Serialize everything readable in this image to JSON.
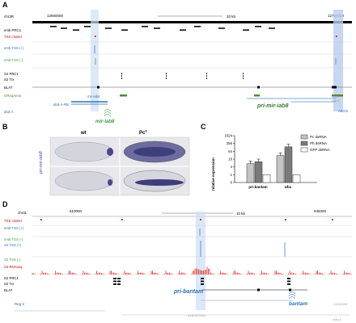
{
  "panels": {
    "a": "A",
    "b": "B",
    "c": "C",
    "d": "D"
  },
  "panelA": {
    "chrom": "chr3R",
    "coord_left": "12660000",
    "coord_right": "12750000",
    "scale": "20 kb",
    "tracks": [
      "emb PRC1",
      "TSS cluster",
      "emb TSS (+)",
      "emb TSS (-)",
      "S2 PRC1",
      "S2 Trx",
      "BLAT",
      "ORegAnno"
    ],
    "genes": {
      "left": "abd-A",
      "abdA_RB": "abd-A-RB",
      "mir_iab4": "mir-iab4",
      "mir_iab8": "mir-iab8",
      "pri_mir_iab8": "pri-mir-iab8",
      "abd_b": "Abd-B",
      "abdB_tiny1": "Abd-B",
      "abdB_tiny2": "Abd-B"
    }
  },
  "panelB": {
    "col_wt": "wt",
    "col_pc": "Pc",
    "col_pc_sup": "3",
    "side_label": "pri-mir-iab8"
  },
  "panelC": {
    "ylabel": "relative expression",
    "ticks": [
      "1024",
      "256",
      "64",
      "16",
      "4",
      "1",
      "0"
    ],
    "legend": [
      "Pc dsRNA",
      "Ph dsRNA",
      "GFP dsRNA"
    ],
    "colors": [
      "#c4c4c4",
      "#7a7a7a",
      "#ffffff"
    ],
    "groups": [
      "pri-bantam",
      "Ubx"
    ]
  },
  "chart_data": {
    "type": "bar",
    "categories": [
      "pri-bantam",
      "Ubx"
    ],
    "series": [
      {
        "name": "Pc dsRNA",
        "values": [
          7,
          30
        ]
      },
      {
        "name": "Ph dsRNA",
        "values": [
          10,
          140
        ]
      },
      {
        "name": "GFP dsRNA",
        "values": [
          1,
          1
        ]
      }
    ],
    "ylabel": "relative expression",
    "ylim": [
      0,
      1024
    ],
    "yscale": "log2"
  },
  "panelD": {
    "chrom": "chr3L",
    "coord_left": "610000",
    "coord_right": "645000",
    "scale": "10 kb",
    "tracks": [
      "TSS cluster",
      "emb TSS (+)",
      "emb TSS (-)",
      "S2 TSS (+)",
      "S2 TSS (-)",
      "S2 RNAseq",
      "S2 PRC1",
      "S2 Trx",
      "BLAT"
    ],
    "genes": {
      "reg2": "Reg-2",
      "pri_bantam": "pri-bantam",
      "bantam": "bantam",
      "ep": "l(3)P0P3019",
      "cg": "CG12023",
      "ban": "ban,1"
    }
  }
}
